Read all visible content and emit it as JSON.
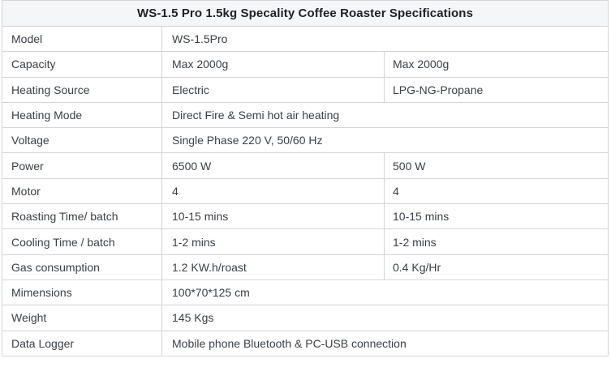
{
  "title": "WS-1.5 Pro 1.5kg Specality Coffee Roaster Specifications",
  "colors": {
    "border": "#d4d6d8",
    "title_bg": "#f5f6f7",
    "title_text": "#1d2126",
    "body_text": "#3b4045",
    "page_bg": "#ffffff"
  },
  "table": {
    "rows": [
      {
        "label": "Model",
        "values": [
          "WS-1.5Pro"
        ]
      },
      {
        "label": "Capacity",
        "values": [
          "Max 2000g",
          "Max 2000g"
        ]
      },
      {
        "label": "Heating Source",
        "values": [
          "Electric",
          "LPG-NG-Propane"
        ]
      },
      {
        "label": "Heating Mode",
        "values": [
          "Direct Fire & Semi hot air heating"
        ]
      },
      {
        "label": "Voltage",
        "values": [
          "Single Phase 220 V, 50/60 Hz"
        ]
      },
      {
        "label": "Power",
        "values": [
          "6500 W",
          "500 W"
        ]
      },
      {
        "label": "Motor",
        "values": [
          "4",
          "4"
        ]
      },
      {
        "label": "Roasting Time/ batch",
        "values": [
          "10-15 mins",
          "10-15 mins"
        ]
      },
      {
        "label": "Cooling Time / batch",
        "values": [
          "1-2 mins",
          "1-2 mins"
        ]
      },
      {
        "label": "Gas consumption",
        "values": [
          "1.2 KW.h/roast",
          "0.4 Kg/Hr"
        ]
      },
      {
        "label": "Mimensions",
        "values": [
          "100*70*125 cm"
        ]
      },
      {
        "label": "Weight",
        "values": [
          "145 Kgs"
        ]
      },
      {
        "label": "Data Logger",
        "values": [
          "Mobile phone Bluetooth & PC-USB connection"
        ]
      }
    ]
  }
}
